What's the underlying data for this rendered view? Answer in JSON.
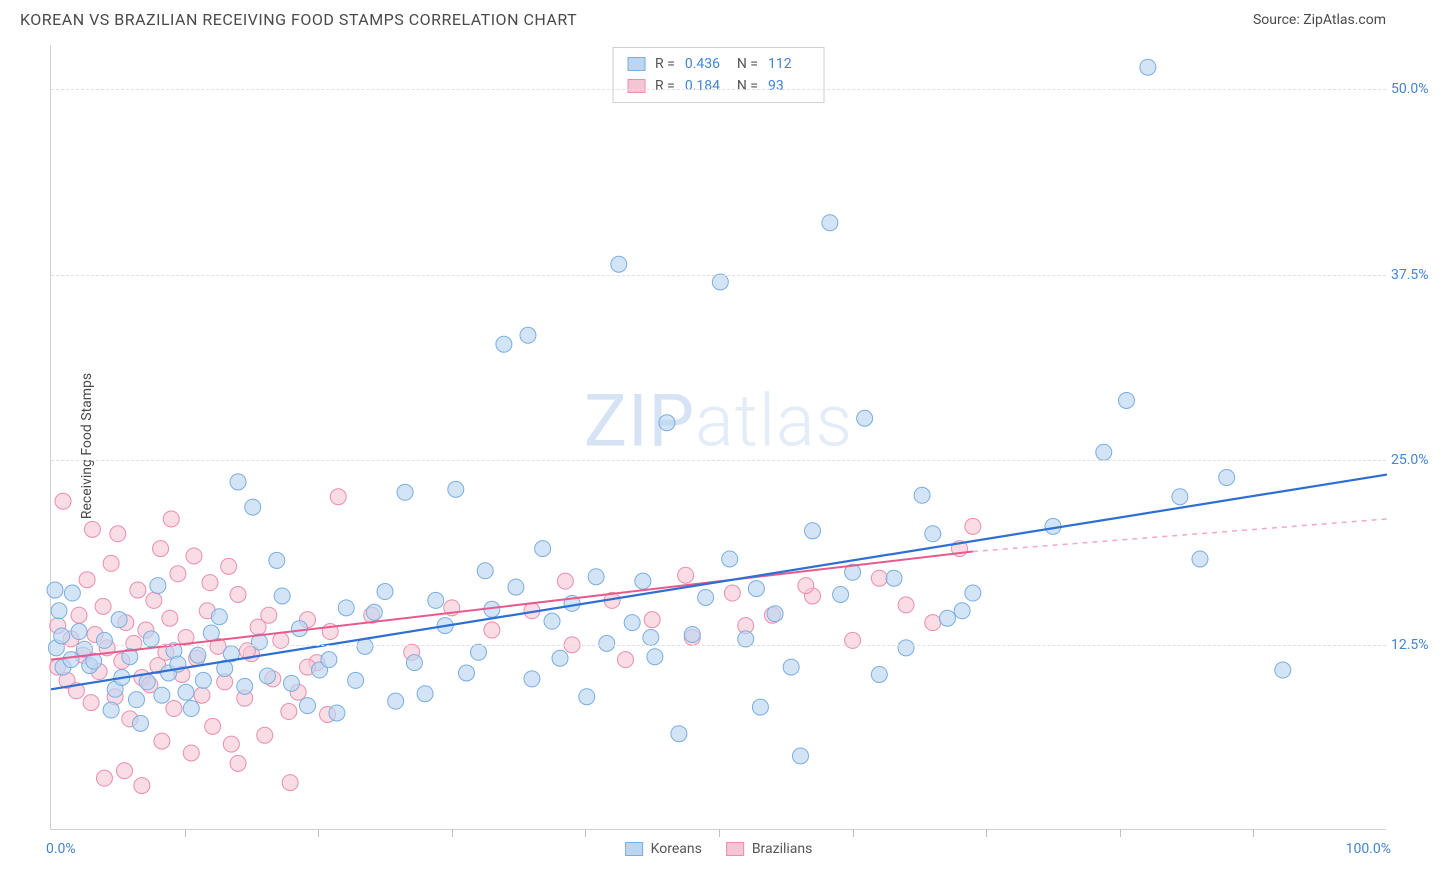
{
  "header": {
    "title": "KOREAN VS BRAZILIAN RECEIVING FOOD STAMPS CORRELATION CHART",
    "source": "Source: ZipAtlas.com"
  },
  "watermark": {
    "bold": "ZIP",
    "thin": "atlas"
  },
  "ylabel": "Receiving Food Stamps",
  "axes": {
    "xmin": 0,
    "xmax": 100,
    "ymin": 0,
    "ymax": 53,
    "xlabel_min": "0.0%",
    "xlabel_max": "100.0%",
    "yticks": [
      {
        "v": 12.5,
        "label": "12.5%"
      },
      {
        "v": 25.0,
        "label": "25.0%"
      },
      {
        "v": 37.5,
        "label": "37.5%"
      },
      {
        "v": 50.0,
        "label": "50.0%"
      }
    ],
    "xticks_minor": [
      10,
      20,
      30,
      40,
      50,
      60,
      70,
      80,
      90
    ],
    "grid_color": "#e0e0e0",
    "axis_color": "#d0d0d0"
  },
  "series": {
    "koreans": {
      "label": "Koreans",
      "fill": "#bcd6f2",
      "stroke": "#7aaee0",
      "marker_radius": 8,
      "marker_opacity": 0.65,
      "regression": {
        "x1": 0,
        "y1": 9.5,
        "x2": 100,
        "y2": 24.0,
        "color": "#2d6fd2",
        "width": 2.2
      },
      "points": [
        [
          0.4,
          12.3
        ],
        [
          0.6,
          14.8
        ],
        [
          0.9,
          11.0
        ],
        [
          0.8,
          13.1
        ],
        [
          0.3,
          16.2
        ],
        [
          1.6,
          16.0
        ],
        [
          1.5,
          11.5
        ],
        [
          2.1,
          13.4
        ],
        [
          2.5,
          12.2
        ],
        [
          2.9,
          11.1
        ],
        [
          3.2,
          11.4
        ],
        [
          4.0,
          12.8
        ],
        [
          4.8,
          9.5
        ],
        [
          4.5,
          8.1
        ],
        [
          5.1,
          14.2
        ],
        [
          5.3,
          10.3
        ],
        [
          5.9,
          11.7
        ],
        [
          6.4,
          8.8
        ],
        [
          6.7,
          7.2
        ],
        [
          7.2,
          10.0
        ],
        [
          7.5,
          12.9
        ],
        [
          8.0,
          16.5
        ],
        [
          8.3,
          9.1
        ],
        [
          8.8,
          10.6
        ],
        [
          9.2,
          12.1
        ],
        [
          9.5,
          11.2
        ],
        [
          10.1,
          9.3
        ],
        [
          10.5,
          8.2
        ],
        [
          11.0,
          11.8
        ],
        [
          11.4,
          10.1
        ],
        [
          12.0,
          13.3
        ],
        [
          12.6,
          14.4
        ],
        [
          13.0,
          10.9
        ],
        [
          13.5,
          11.9
        ],
        [
          14.0,
          23.5
        ],
        [
          14.5,
          9.7
        ],
        [
          15.1,
          21.8
        ],
        [
          15.6,
          12.7
        ],
        [
          16.2,
          10.4
        ],
        [
          16.9,
          18.2
        ],
        [
          17.3,
          15.8
        ],
        [
          18.0,
          9.9
        ],
        [
          18.6,
          13.6
        ],
        [
          19.2,
          8.4
        ],
        [
          20.1,
          10.8
        ],
        [
          20.8,
          11.5
        ],
        [
          21.4,
          7.9
        ],
        [
          22.1,
          15.0
        ],
        [
          22.8,
          10.1
        ],
        [
          23.5,
          12.4
        ],
        [
          24.2,
          14.7
        ],
        [
          25.0,
          16.1
        ],
        [
          25.8,
          8.7
        ],
        [
          26.5,
          22.8
        ],
        [
          27.2,
          11.3
        ],
        [
          28.0,
          9.2
        ],
        [
          28.8,
          15.5
        ],
        [
          29.5,
          13.8
        ],
        [
          30.3,
          23.0
        ],
        [
          31.1,
          10.6
        ],
        [
          32.0,
          12.0
        ],
        [
          33.0,
          14.9
        ],
        [
          33.9,
          32.8
        ],
        [
          34.8,
          16.4
        ],
        [
          35.7,
          33.4
        ],
        [
          36.0,
          10.2
        ],
        [
          37.5,
          14.1
        ],
        [
          38.1,
          11.6
        ],
        [
          39.0,
          15.3
        ],
        [
          40.1,
          9.0
        ],
        [
          40.8,
          17.1
        ],
        [
          41.6,
          12.6
        ],
        [
          42.5,
          38.2
        ],
        [
          43.5,
          14.0
        ],
        [
          44.3,
          16.8
        ],
        [
          45.2,
          11.7
        ],
        [
          46.1,
          27.5
        ],
        [
          47.0,
          6.5
        ],
        [
          48.0,
          13.2
        ],
        [
          49.0,
          15.7
        ],
        [
          50.1,
          37.0
        ],
        [
          50.8,
          18.3
        ],
        [
          52.0,
          12.9
        ],
        [
          53.1,
          8.3
        ],
        [
          54.2,
          14.6
        ],
        [
          55.4,
          11.0
        ],
        [
          56.1,
          5.0
        ],
        [
          57.0,
          20.2
        ],
        [
          58.3,
          41.0
        ],
        [
          59.1,
          15.9
        ],
        [
          60.0,
          17.4
        ],
        [
          60.9,
          27.8
        ],
        [
          62.0,
          10.5
        ],
        [
          63.1,
          17.0
        ],
        [
          64.0,
          12.3
        ],
        [
          65.2,
          22.6
        ],
        [
          66.0,
          20.0
        ],
        [
          67.1,
          14.3
        ],
        [
          68.2,
          14.8
        ],
        [
          69.0,
          16.0
        ],
        [
          75.0,
          20.5
        ],
        [
          78.8,
          25.5
        ],
        [
          80.5,
          29.0
        ],
        [
          82.1,
          51.5
        ],
        [
          84.5,
          22.5
        ],
        [
          86.0,
          18.3
        ],
        [
          88.0,
          23.8
        ],
        [
          92.2,
          10.8
        ],
        [
          32.5,
          17.5
        ],
        [
          36.8,
          19.0
        ],
        [
          44.9,
          13.0
        ],
        [
          52.8,
          16.3
        ]
      ],
      "N": 112,
      "R": "0.436"
    },
    "brazilians": {
      "label": "Brazilians",
      "fill": "#f6c5d4",
      "stroke": "#e98fae",
      "marker_radius": 8,
      "marker_opacity": 0.6,
      "regression": {
        "x1": 0,
        "y1": 11.5,
        "x2": 69,
        "y2": 18.8,
        "color": "#e75a8b",
        "width": 2.0
      },
      "regression_dashed": {
        "x1": 69,
        "y1": 18.8,
        "x2": 100,
        "y2": 21.0,
        "color": "#f2a9c0",
        "width": 1.5
      },
      "points": [
        [
          0.5,
          13.8
        ],
        [
          0.5,
          11.0
        ],
        [
          0.9,
          22.2
        ],
        [
          1.2,
          10.1
        ],
        [
          1.5,
          12.9
        ],
        [
          1.9,
          9.4
        ],
        [
          2.1,
          14.5
        ],
        [
          2.4,
          11.8
        ],
        [
          2.7,
          16.9
        ],
        [
          3.0,
          8.6
        ],
        [
          3.3,
          13.2
        ],
        [
          3.6,
          10.7
        ],
        [
          3.9,
          15.1
        ],
        [
          4.2,
          12.3
        ],
        [
          4.5,
          18.0
        ],
        [
          4.8,
          9.0
        ],
        [
          5.0,
          20.0
        ],
        [
          5.3,
          11.4
        ],
        [
          5.6,
          14.0
        ],
        [
          5.9,
          7.5
        ],
        [
          6.2,
          12.6
        ],
        [
          6.5,
          16.2
        ],
        [
          6.8,
          10.3
        ],
        [
          7.1,
          13.5
        ],
        [
          7.4,
          9.8
        ],
        [
          7.7,
          15.5
        ],
        [
          8.0,
          11.1
        ],
        [
          8.3,
          6.0
        ],
        [
          8.6,
          12.0
        ],
        [
          8.9,
          14.3
        ],
        [
          9.2,
          8.2
        ],
        [
          9.5,
          17.3
        ],
        [
          9.8,
          10.5
        ],
        [
          10.1,
          13.0
        ],
        [
          10.5,
          5.2
        ],
        [
          10.9,
          11.6
        ],
        [
          11.3,
          9.1
        ],
        [
          11.7,
          14.8
        ],
        [
          12.1,
          7.0
        ],
        [
          12.5,
          12.4
        ],
        [
          13.0,
          10.0
        ],
        [
          13.5,
          5.8
        ],
        [
          14.0,
          15.9
        ],
        [
          14.5,
          8.9
        ],
        [
          15.0,
          11.9
        ],
        [
          15.5,
          13.7
        ],
        [
          16.0,
          6.4
        ],
        [
          16.6,
          10.2
        ],
        [
          17.2,
          12.8
        ],
        [
          17.9,
          3.2
        ],
        [
          18.5,
          9.3
        ],
        [
          19.2,
          14.2
        ],
        [
          19.9,
          11.3
        ],
        [
          20.7,
          7.8
        ],
        [
          21.5,
          22.5
        ],
        [
          3.1,
          20.3
        ],
        [
          4.0,
          3.5
        ],
        [
          5.5,
          4.0
        ],
        [
          6.8,
          3.0
        ],
        [
          8.2,
          19.0
        ],
        [
          9.0,
          21.0
        ],
        [
          10.7,
          18.5
        ],
        [
          11.9,
          16.7
        ],
        [
          13.3,
          17.8
        ],
        [
          14.7,
          12.1
        ],
        [
          16.3,
          14.5
        ],
        [
          17.8,
          8.0
        ],
        [
          19.2,
          11.0
        ],
        [
          20.9,
          13.4
        ],
        [
          24.0,
          14.5
        ],
        [
          27.0,
          12.0
        ],
        [
          30.0,
          15.0
        ],
        [
          33.0,
          13.5
        ],
        [
          36.0,
          14.8
        ],
        [
          39.0,
          12.5
        ],
        [
          42.0,
          15.5
        ],
        [
          45.0,
          14.2
        ],
        [
          48.0,
          13.0
        ],
        [
          51.0,
          16.0
        ],
        [
          54.0,
          14.5
        ],
        [
          57.0,
          15.8
        ],
        [
          60.0,
          12.8
        ],
        [
          62.0,
          17.0
        ],
        [
          64.0,
          15.2
        ],
        [
          66.0,
          14.0
        ],
        [
          68.0,
          19.0
        ],
        [
          69.0,
          20.5
        ],
        [
          38.5,
          16.8
        ],
        [
          43.0,
          11.5
        ],
        [
          47.5,
          17.2
        ],
        [
          52.0,
          13.8
        ],
        [
          56.5,
          16.5
        ],
        [
          14.0,
          4.5
        ]
      ],
      "N": 93,
      "R": "0.184"
    }
  },
  "legend": {
    "series": [
      {
        "label": "Koreans",
        "fill": "#bcd6f2",
        "stroke": "#7aaee0"
      },
      {
        "label": "Brazilians",
        "fill": "#f6c5d4",
        "stroke": "#e98fae"
      }
    ]
  },
  "colors": {
    "text": "#4a4a4a",
    "axis_val": "#4285d4",
    "background": "#ffffff"
  }
}
